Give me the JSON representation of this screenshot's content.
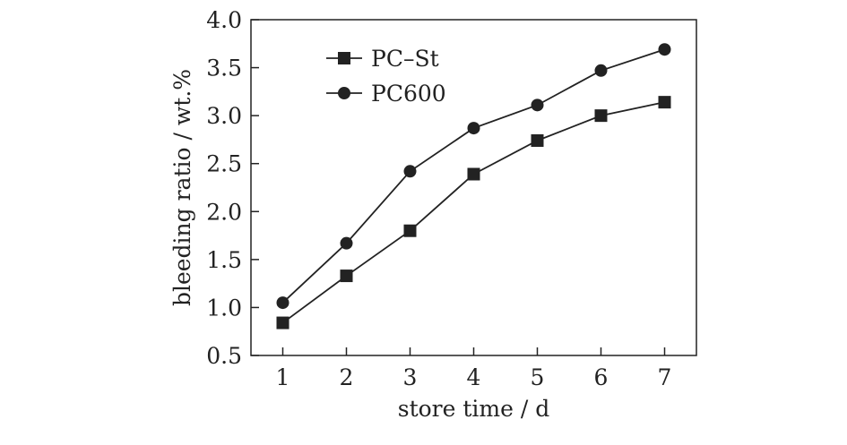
{
  "chart_data": {
    "type": "line",
    "title": "",
    "xlabel": "store time / d",
    "ylabel": "bleeding ratio / wt.%",
    "x": [
      1,
      2,
      3,
      4,
      5,
      6,
      7
    ],
    "xticks": [
      "1",
      "2",
      "3",
      "4",
      "5",
      "6",
      "7"
    ],
    "xlim": [
      0.5,
      7.5
    ],
    "ylim": [
      0.5,
      4.0
    ],
    "yticks": [
      "0.5",
      "1.0",
      "1.5",
      "2.0",
      "2.5",
      "3.0",
      "3.5",
      "4.0"
    ],
    "grid": false,
    "legend_position": "top-left",
    "series": [
      {
        "name": "PC–St",
        "marker": "square",
        "color": "#222222",
        "values": [
          0.84,
          1.33,
          1.8,
          2.39,
          2.74,
          3.0,
          3.14
        ]
      },
      {
        "name": "PC600",
        "marker": "circle",
        "color": "#222222",
        "values": [
          1.05,
          1.67,
          2.42,
          2.87,
          3.11,
          3.47,
          3.69
        ]
      }
    ]
  }
}
